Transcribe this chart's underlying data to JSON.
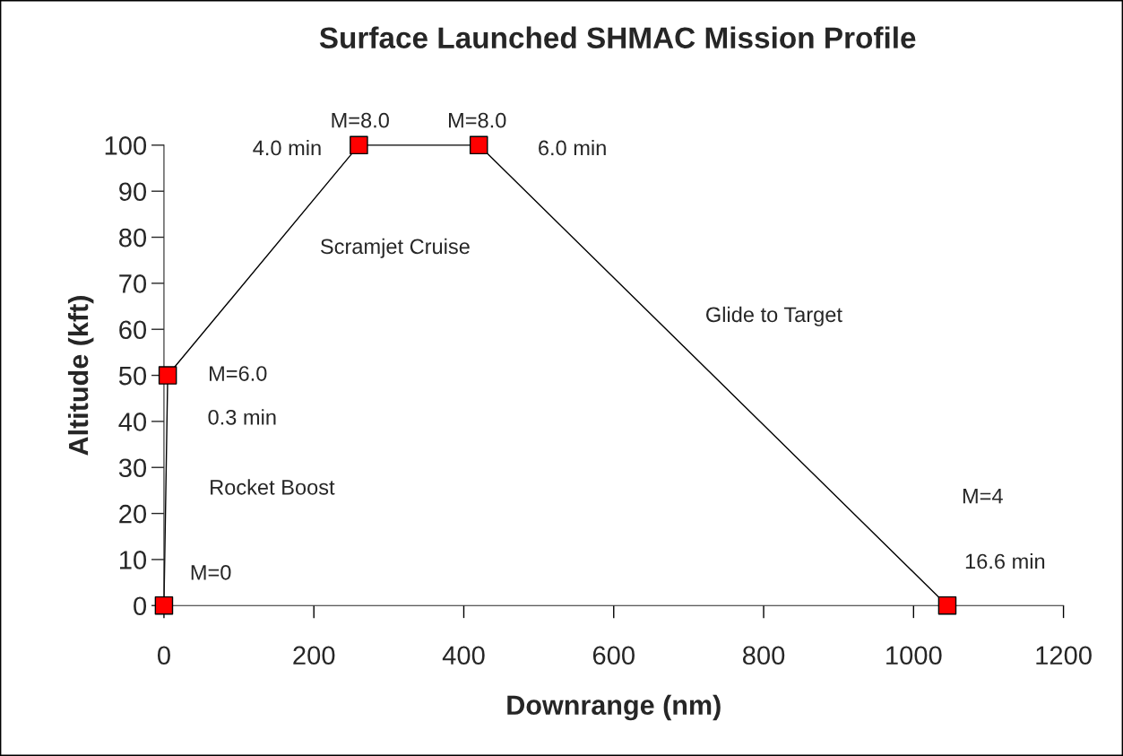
{
  "chart_data": {
    "type": "line",
    "title": "Surface Launched SHMAC Mission Profile",
    "xlabel": "Downrange (nm)",
    "ylabel": "Altitude (kft)",
    "x": [
      0,
      5,
      260,
      420,
      1045
    ],
    "series": [
      {
        "color": "#ff0000",
        "values": [
          0,
          50,
          100,
          100,
          0
        ]
      }
    ],
    "marker": "square",
    "line_style": "solid",
    "grid": false,
    "legend": false,
    "xlim": [
      0,
      1200
    ],
    "xticks": [
      0,
      200,
      400,
      600,
      800,
      1000,
      1200
    ],
    "ylim": [
      0,
      100
    ],
    "yticks": [
      0,
      10,
      20,
      30,
      40,
      50,
      60,
      70,
      80,
      90,
      100
    ],
    "annotations": [
      "M=8.0",
      "4.0 min",
      "M=8.0",
      "6.0 min",
      "Scramjet Cruise",
      "Glide to Target",
      "M=6.0",
      "0.3 min",
      "Rocket Boost",
      "M=0",
      "M=4",
      "16.6 min"
    ]
  }
}
